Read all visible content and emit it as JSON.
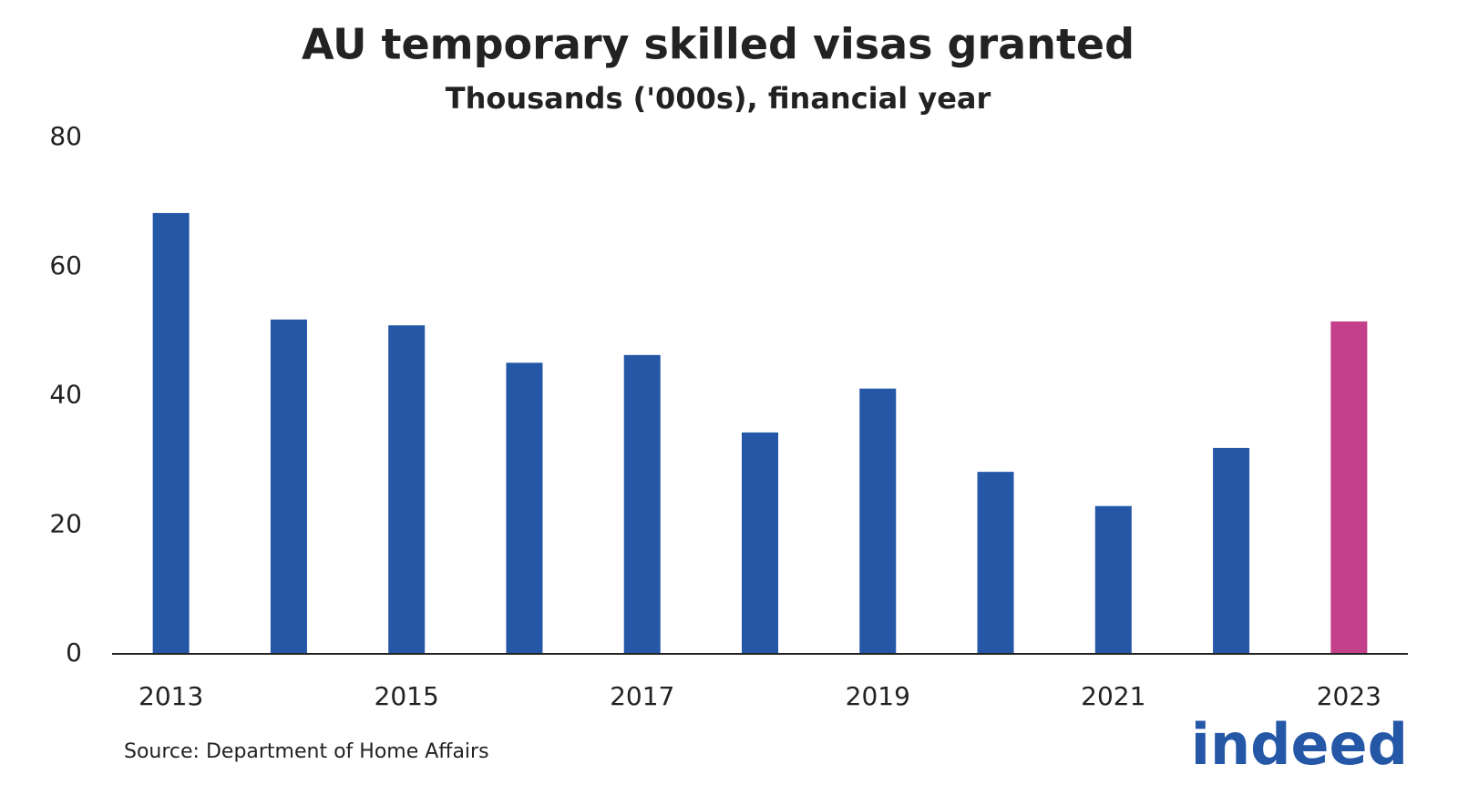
{
  "chart_data": {
    "type": "bar",
    "title": "AU temporary skilled visas granted",
    "subtitle": "Thousands ('000s), financial year",
    "categories": [
      "2013",
      null,
      "2015",
      null,
      "2017",
      null,
      "2019",
      null,
      "2021",
      null,
      "2023"
    ],
    "values": [
      68.3,
      51.8,
      50.9,
      45.1,
      46.3,
      34.3,
      41.1,
      28.2,
      22.9,
      31.9,
      51.5
    ],
    "colors": [
      "#2557a7",
      "#2557a7",
      "#2557a7",
      "#2557a7",
      "#2557a7",
      "#2557a7",
      "#2557a7",
      "#2557a7",
      "#2557a7",
      "#2557a7",
      "#c5408a"
    ],
    "ylim": [
      0,
      80
    ],
    "yticks": [
      0,
      20,
      40,
      60,
      80
    ],
    "grid": false,
    "source": "Source: Department of Home Affairs",
    "logo": "indeed"
  }
}
